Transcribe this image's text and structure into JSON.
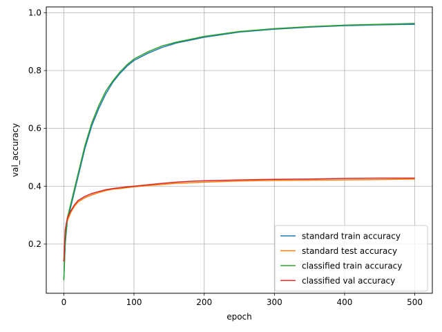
{
  "chart_data": {
    "type": "line",
    "xlabel": "epoch",
    "ylabel": "val_accuracy",
    "xlim": [
      -25,
      525
    ],
    "ylim": [
      0.03,
      1.02
    ],
    "x_ticks": [
      0,
      100,
      200,
      300,
      400,
      500
    ],
    "y_ticks": [
      0.2,
      0.4,
      0.6,
      0.8,
      1.0
    ],
    "x_tick_labels": [
      "0",
      "100",
      "200",
      "300",
      "400",
      "500"
    ],
    "y_tick_labels": [
      "0.2",
      "0.4",
      "0.6",
      "0.8",
      "1.0"
    ],
    "grid": true,
    "legend_position": "lower-right",
    "x": [
      0,
      2,
      5,
      10,
      15,
      20,
      30,
      40,
      50,
      60,
      70,
      80,
      90,
      100,
      120,
      140,
      160,
      180,
      200,
      250,
      300,
      350,
      400,
      450,
      500
    ],
    "series": [
      {
        "name": "standard train accuracy",
        "color": "#1f77b4",
        "values": [
          0.08,
          0.2,
          0.28,
          0.33,
          0.38,
          0.43,
          0.53,
          0.61,
          0.67,
          0.72,
          0.76,
          0.79,
          0.815,
          0.835,
          0.86,
          0.88,
          0.895,
          0.905,
          0.915,
          0.933,
          0.943,
          0.95,
          0.955,
          0.958,
          0.96
        ]
      },
      {
        "name": "standard test accuracy",
        "color": "#ff7f0e",
        "values": [
          0.14,
          0.24,
          0.28,
          0.31,
          0.33,
          0.345,
          0.36,
          0.37,
          0.378,
          0.385,
          0.39,
          0.392,
          0.395,
          0.398,
          0.402,
          0.406,
          0.41,
          0.412,
          0.414,
          0.418,
          0.42,
          0.421,
          0.422,
          0.423,
          0.425
        ]
      },
      {
        "name": "classified train accuracy",
        "color": "#2ca02c",
        "values": [
          0.075,
          0.21,
          0.29,
          0.34,
          0.39,
          0.44,
          0.54,
          0.62,
          0.68,
          0.73,
          0.765,
          0.795,
          0.82,
          0.84,
          0.865,
          0.885,
          0.898,
          0.908,
          0.918,
          0.935,
          0.945,
          0.952,
          0.957,
          0.96,
          0.963
        ]
      },
      {
        "name": "classified val accuracy",
        "color": "#d62728",
        "values": [
          0.14,
          0.25,
          0.29,
          0.315,
          0.335,
          0.35,
          0.365,
          0.375,
          0.382,
          0.388,
          0.392,
          0.395,
          0.398,
          0.4,
          0.405,
          0.41,
          0.414,
          0.417,
          0.419,
          0.422,
          0.424,
          0.425,
          0.427,
          0.428,
          0.428
        ]
      }
    ]
  }
}
